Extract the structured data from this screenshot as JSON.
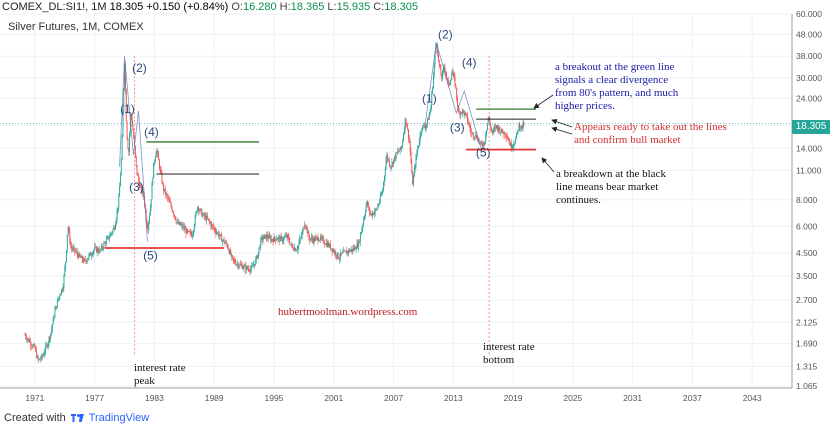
{
  "header": {
    "symbol": "COMEX_DL:SI1!, 1M",
    "change": "18.305 +0.150 (+0.84%)",
    "open_label": "O:",
    "open": "16.280",
    "high_label": "H:",
    "high": "18.365",
    "low_label": "L:",
    "low": "15.935",
    "close_label": "C:",
    "close": "18.305"
  },
  "chart_title": "Silver Futures, 1M, COMEX",
  "footer": {
    "created_with": "Created with",
    "brand": "TradingView"
  },
  "colors": {
    "up": "#26a69a",
    "down": "#ef5350",
    "green_line": "#2e7d32",
    "red_line": "#e53935",
    "black_line": "#222222",
    "annot_blue": "#1a1aa6",
    "annot_red": "#d32f2f",
    "wave_label": "#2c4a7c",
    "current_price": "#26a69a",
    "interest_line": "#ec7f7f"
  },
  "chart_data": {
    "type": "candlestick",
    "title": "Silver Futures, 1M, COMEX",
    "yscale": "log",
    "ylim": [
      1.065,
      60.0
    ],
    "xlim": [
      1967.5,
      2047.0
    ],
    "ytick_labels": [
      "60.000",
      "48.000",
      "38.000",
      "30.000",
      "24.000",
      "18.000",
      "14.000",
      "11.000",
      "8.000",
      "6.000",
      "4.500",
      "3.500",
      "2.700",
      "2.125",
      "1.690",
      "1.315",
      "1.065"
    ],
    "yticks": [
      60.0,
      48.0,
      38.0,
      30.0,
      24.0,
      18.0,
      14.0,
      11.0,
      8.0,
      6.0,
      4.5,
      3.5,
      2.7,
      2.125,
      1.69,
      1.315,
      1.065
    ],
    "xtick_labels": [
      "1971",
      "1977",
      "1983",
      "1989",
      "1995",
      "2001",
      "2007",
      "2013",
      "2019",
      "2025",
      "2031",
      "2037",
      "2043"
    ],
    "xticks": [
      1971,
      1977,
      1983,
      1989,
      1995,
      2001,
      2007,
      2013,
      2019,
      2025,
      2031,
      2037,
      2043
    ],
    "current_price": 18.305,
    "current_price_label": "18.305",
    "price_path": [
      [
        1970.0,
        1.85
      ],
      [
        1970.5,
        1.72
      ],
      [
        1971.0,
        1.6
      ],
      [
        1971.3,
        1.4
      ],
      [
        1971.7,
        1.45
      ],
      [
        1972.2,
        1.65
      ],
      [
        1972.6,
        1.9
      ],
      [
        1973.0,
        2.4
      ],
      [
        1973.5,
        2.9
      ],
      [
        1973.8,
        3.1
      ],
      [
        1974.1,
        4.2
      ],
      [
        1974.3,
        6.1
      ],
      [
        1974.6,
        4.8
      ],
      [
        1975.0,
        4.6
      ],
      [
        1975.5,
        4.3
      ],
      [
        1976.0,
        4.1
      ],
      [
        1976.5,
        4.4
      ],
      [
        1977.0,
        4.7
      ],
      [
        1977.5,
        4.6
      ],
      [
        1978.0,
        5.0
      ],
      [
        1978.5,
        5.4
      ],
      [
        1979.0,
        6.0
      ],
      [
        1979.4,
        7.8
      ],
      [
        1979.7,
        13.0
      ],
      [
        1980.0,
        36.0
      ],
      [
        1980.2,
        17.0
      ],
      [
        1980.4,
        13.0
      ],
      [
        1980.6,
        21.0
      ],
      [
        1980.9,
        16.0
      ],
      [
        1981.2,
        11.0
      ],
      [
        1981.6,
        9.0
      ],
      [
        1981.9,
        8.5
      ],
      [
        1982.3,
        5.8
      ],
      [
        1982.6,
        7.5
      ],
      [
        1982.9,
        11.5
      ],
      [
        1983.2,
        14.0
      ],
      [
        1983.5,
        11.5
      ],
      [
        1983.9,
        9.0
      ],
      [
        1984.3,
        8.2
      ],
      [
        1984.8,
        7.2
      ],
      [
        1985.3,
        6.2
      ],
      [
        1985.8,
        6.0
      ],
      [
        1986.3,
        5.6
      ],
      [
        1986.8,
        5.5
      ],
      [
        1987.3,
        7.5
      ],
      [
        1987.8,
        6.8
      ],
      [
        1988.3,
        6.5
      ],
      [
        1988.8,
        6.0
      ],
      [
        1989.3,
        5.6
      ],
      [
        1989.8,
        5.2
      ],
      [
        1990.3,
        4.9
      ],
      [
        1990.8,
        4.2
      ],
      [
        1991.3,
        4.0
      ],
      [
        1991.8,
        3.9
      ],
      [
        1992.3,
        3.8
      ],
      [
        1992.8,
        3.8
      ],
      [
        1993.3,
        4.3
      ],
      [
        1993.7,
        5.2
      ],
      [
        1994.2,
        5.4
      ],
      [
        1994.8,
        5.2
      ],
      [
        1995.3,
        5.3
      ],
      [
        1995.8,
        5.2
      ],
      [
        1996.3,
        5.4
      ],
      [
        1996.8,
        4.8
      ],
      [
        1997.3,
        4.7
      ],
      [
        1997.8,
        5.5
      ],
      [
        1998.1,
        6.3
      ],
      [
        1998.5,
        5.3
      ],
      [
        1999.0,
        5.2
      ],
      [
        1999.5,
        5.3
      ],
      [
        2000.0,
        5.1
      ],
      [
        2000.5,
        4.9
      ],
      [
        2001.0,
        4.6
      ],
      [
        2001.5,
        4.3
      ],
      [
        2002.0,
        4.5
      ],
      [
        2002.5,
        4.6
      ],
      [
        2003.0,
        4.7
      ],
      [
        2003.5,
        5.0
      ],
      [
        2004.0,
        6.5
      ],
      [
        2004.3,
        7.8
      ],
      [
        2004.7,
        6.8
      ],
      [
        2005.3,
        7.2
      ],
      [
        2005.9,
        8.8
      ],
      [
        2006.3,
        13.0
      ],
      [
        2006.7,
        11.5
      ],
      [
        2007.3,
        13.2
      ],
      [
        2007.8,
        14.0
      ],
      [
        2008.2,
        19.5
      ],
      [
        2008.6,
        15.0
      ],
      [
        2008.9,
        9.5
      ],
      [
        2009.3,
        13.0
      ],
      [
        2009.8,
        17.5
      ],
      [
        2010.3,
        18.0
      ],
      [
        2010.7,
        21.0
      ],
      [
        2010.95,
        29.0
      ],
      [
        2011.3,
        46.0
      ],
      [
        2011.5,
        36.0
      ],
      [
        2011.8,
        30.0
      ],
      [
        2012.1,
        34.0
      ],
      [
        2012.5,
        27.5
      ],
      [
        2012.9,
        32.0
      ],
      [
        2013.2,
        28.0
      ],
      [
        2013.5,
        20.5
      ],
      [
        2013.9,
        21.0
      ],
      [
        2014.3,
        19.8
      ],
      [
        2014.8,
        16.5
      ],
      [
        2015.3,
        16.0
      ],
      [
        2015.8,
        14.4
      ],
      [
        2016.1,
        14.8
      ],
      [
        2016.5,
        19.5
      ],
      [
        2016.9,
        16.5
      ],
      [
        2017.3,
        17.8
      ],
      [
        2017.8,
        16.8
      ],
      [
        2018.3,
        16.4
      ],
      [
        2018.8,
        14.2
      ],
      [
        2019.2,
        15.2
      ],
      [
        2019.6,
        18.0
      ],
      [
        2019.9,
        17.5
      ],
      [
        2020.1,
        18.3
      ]
    ],
    "annotations": {
      "texts": [
        {
          "text": "a breakout at the green line"
        },
        {
          "text": "signals a clear divergence"
        },
        {
          "text": "from 80's pattern, and much"
        },
        {
          "text": "higher prices."
        },
        {
          "text": "Appears ready to take out the lines"
        },
        {
          "text": "and confirm bull market"
        },
        {
          "text": "a breakdown at the black"
        },
        {
          "text": "line means bear market"
        },
        {
          "text": "continues."
        },
        {
          "text": "hubertmoolman.wordpress.com"
        },
        {
          "text": "interest rate"
        },
        {
          "text": "peak"
        },
        {
          "text": "interest rate"
        },
        {
          "text": "bottom"
        }
      ],
      "wave_labels_80s": [
        "(1)",
        "(2)",
        "(3)",
        "(4)",
        "(5)"
      ],
      "wave_labels_2010s": [
        "(1)",
        "(2)",
        "(3)",
        "(4)",
        "(5)"
      ],
      "horizontal_lines": [
        {
          "color": "green",
          "y": 15.0,
          "x": [
            1982.2,
            1993.5
          ]
        },
        {
          "color": "black",
          "y": 10.6,
          "x": [
            1983.2,
            1993.5
          ]
        },
        {
          "color": "red",
          "y": 4.75,
          "x": [
            1978.0,
            1990.0
          ]
        },
        {
          "color": "green",
          "y": 21.4,
          "x": [
            2015.3,
            2021.3
          ]
        },
        {
          "color": "black",
          "y": 19.2,
          "x": [
            2015.3,
            2021.3
          ]
        },
        {
          "color": "red",
          "y": 13.8,
          "x": [
            2014.3,
            2021.3
          ]
        }
      ],
      "vertical_lines": [
        {
          "x": 1981.0,
          "label": "interest rate peak"
        },
        {
          "x": 2016.6,
          "label": "interest rate bottom"
        }
      ]
    }
  }
}
